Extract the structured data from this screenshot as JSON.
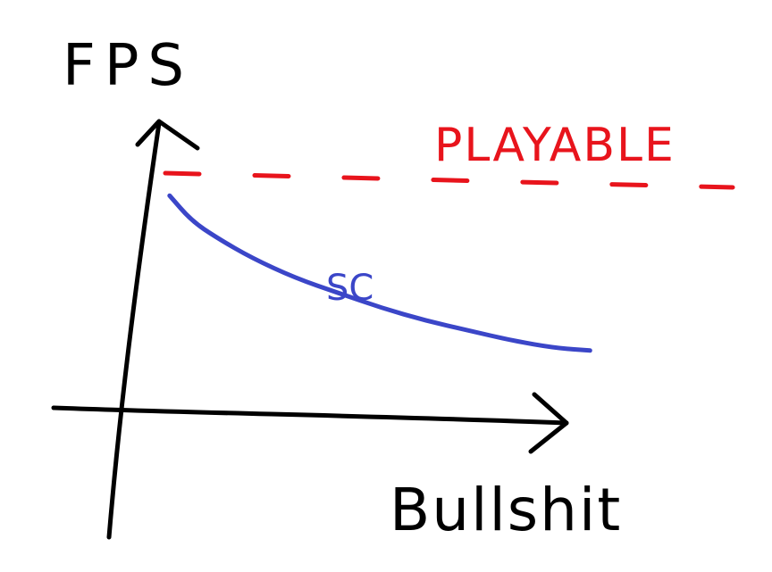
{
  "chart_data": {
    "type": "line",
    "title": "",
    "xlabel": "Bullshit",
    "ylabel": "FPS",
    "xlim": [
      0,
      10
    ],
    "ylim": [
      0,
      10
    ],
    "grid": false,
    "reference_line": {
      "label": "PLAYABLE",
      "y": 9.5,
      "style": "dashed",
      "color": "#e8141c"
    },
    "series": [
      {
        "name": "SC",
        "color": "#3b46c8",
        "x": [
          0.1,
          0.6,
          1.2,
          2.0,
          3.0,
          4.0,
          5.0,
          6.0,
          7.0,
          8.0,
          9.0,
          9.8
        ],
        "y": [
          8.6,
          7.6,
          6.9,
          6.1,
          5.3,
          4.7,
          4.1,
          3.6,
          3.2,
          2.8,
          2.5,
          2.4
        ]
      }
    ],
    "colors": {
      "axes": "#000000",
      "playable": "#e8141c",
      "series": "#3b46c8"
    }
  }
}
